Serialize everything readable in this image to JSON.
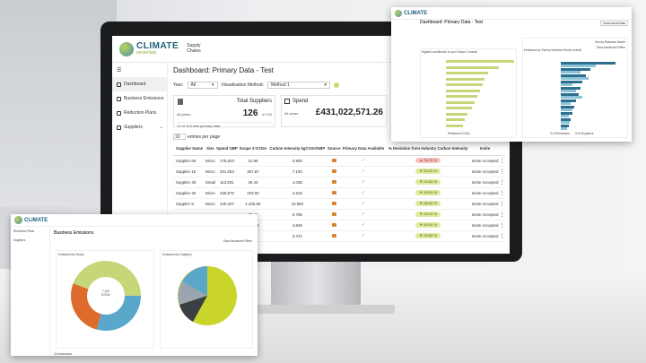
{
  "brand": {
    "name": "CLIMATE",
    "tagline": "essentials",
    "product": "Supply Chains"
  },
  "nav": {
    "items": [
      {
        "label": "Dashboard"
      },
      {
        "label": "Business Emissions"
      },
      {
        "label": "Reduction Plans"
      },
      {
        "label": "Suppliers"
      }
    ]
  },
  "dashboard": {
    "title": "Dashboard: Primary Data - Test",
    "year_label": "Year:",
    "year_value": "All",
    "method_label": "Visualisation Method:",
    "method_value": "Method 1",
    "total_suppliers": {
      "title": "Total Suppliers",
      "period": "All years",
      "value": "126",
      "of": "of 129",
      "sub": "12 of 129 with primary data"
    },
    "spend": {
      "title": "Spend",
      "period": "All years",
      "value": "£431,022,571.26"
    },
    "entries_value": "10",
    "entries_label": "entries per page",
    "table": {
      "headers": [
        "Supplier Name",
        "Size",
        "Spend GBP",
        "Scope 3 tCO2e",
        "Carbon Intensity kgCO2e/GBP",
        "Source",
        "Primary Data Available",
        "% Deviation from Industry Carbon Intensity",
        "Invite",
        ""
      ],
      "rows": [
        {
          "name": "Supplier 65",
          "size": "Micro",
          "spend": "179,823",
          "scope3": "31.96",
          "ci": "0.800",
          "dev": "36.76 %",
          "dev_dir": "up",
          "invite": "Invite Accepted"
        },
        {
          "name": "Supplier 15",
          "size": "Micro",
          "spend": "201,053",
          "scope3": "357.87",
          "ci": "7.100",
          "dev": "89.00 %",
          "dev_dir": "down",
          "invite": "Invite Accepted"
        },
        {
          "name": "Supplier 40",
          "size": "Small",
          "spend": "113,831",
          "scope3": "45.42",
          "ci": "1.036",
          "dev": "93.60 %",
          "dev_dir": "down",
          "invite": "Invite Accepted"
        },
        {
          "name": "Supplier 20",
          "size": "Micro",
          "spend": "330,970",
          "scope3": "233.00",
          "ci": "2.816",
          "dev": "84.00 %",
          "dev_dir": "down",
          "invite": "Invite Accepted"
        },
        {
          "name": "Supplier 8",
          "size": "Micro",
          "spend": "340,307",
          "scope3": "1,325.50",
          "ci": "15.580",
          "dev": "88.00 %",
          "dev_dir": "down",
          "invite": "Invite Accepted"
        },
        {
          "name": "",
          "size": "",
          "spend": "",
          "scope3": "25.15",
          "ci": "0.768",
          "dev": "93.44 %",
          "dev_dir": "down",
          "invite": "Invite Accepted"
        },
        {
          "name": "",
          "size": "",
          "spend": "",
          "scope3": "122.59",
          "ci": "4.846",
          "dev": "64.00 %",
          "dev_dir": "down",
          "invite": "Invite Accepted"
        },
        {
          "name": "",
          "size": "",
          "spend": "",
          "scope3": "33.72",
          "ci": "0.472",
          "dev": "93.80 %",
          "dev_dir": "down",
          "invite": "Invite Accepted"
        }
      ]
    }
  },
  "top_right": {
    "title": "Dashboard: Primary Data - Test",
    "left_chart_title": "Highest contribution to your Scope 3 overall",
    "right_chart_title": "Emissions by Survey Business Sector overall",
    "toggle_label": "Survey Business Sector",
    "advanced": "Show Advanced Filters",
    "download": "Download All Data",
    "legend_left": [
      "Emissions tCO2e"
    ],
    "legend_right": [
      "% of Emissions",
      "% of Suppliers"
    ]
  },
  "bottom_left": {
    "title": "Business Emissions",
    "advanced": "Show Advanced Filters",
    "scope_title": "Emissions by Scope",
    "category_title": "Emissions by Category",
    "center_value": "7,132",
    "center_unit": "tCO2e",
    "count": "14 businesses",
    "colors": {
      "scope1": "#c6d77a",
      "scope2": "#dd6b2b",
      "scope3": "#5aa7cc"
    }
  }
}
